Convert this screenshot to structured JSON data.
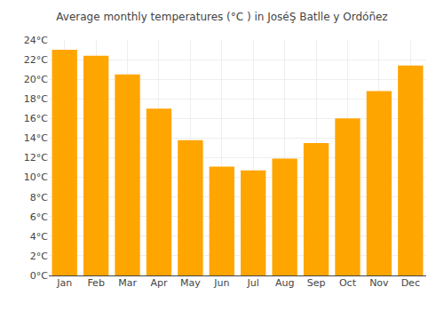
{
  "chart_data": {
    "type": "bar",
    "title": "Average monthly temperatures (°C ) in JoséŞ Batlle y Ordóñez",
    "categories": [
      "Jan",
      "Feb",
      "Mar",
      "Apr",
      "May",
      "Jun",
      "Jul",
      "Aug",
      "Sep",
      "Oct",
      "Nov",
      "Dec"
    ],
    "values": [
      23.0,
      22.4,
      20.5,
      17.0,
      13.8,
      11.1,
      10.7,
      11.9,
      13.5,
      16.0,
      18.8,
      21.4
    ],
    "color": "#FFA500",
    "ylim": [
      0,
      24
    ],
    "yticks": [
      {
        "value": 0,
        "label": "0°C"
      },
      {
        "value": 2,
        "label": "2°C"
      },
      {
        "value": 4,
        "label": "4°C"
      },
      {
        "value": 6,
        "label": "6°C"
      },
      {
        "value": 8,
        "label": "8°C"
      },
      {
        "value": 10,
        "label": "10°C"
      },
      {
        "value": 12,
        "label": "12°C"
      },
      {
        "value": 14,
        "label": "14°C"
      },
      {
        "value": 16,
        "label": "16°C"
      },
      {
        "value": 18,
        "label": "18°C"
      },
      {
        "value": 20,
        "label": "20°C"
      },
      {
        "value": 22,
        "label": "22°C"
      },
      {
        "value": 24,
        "label": "24°C"
      }
    ],
    "grid": true
  }
}
